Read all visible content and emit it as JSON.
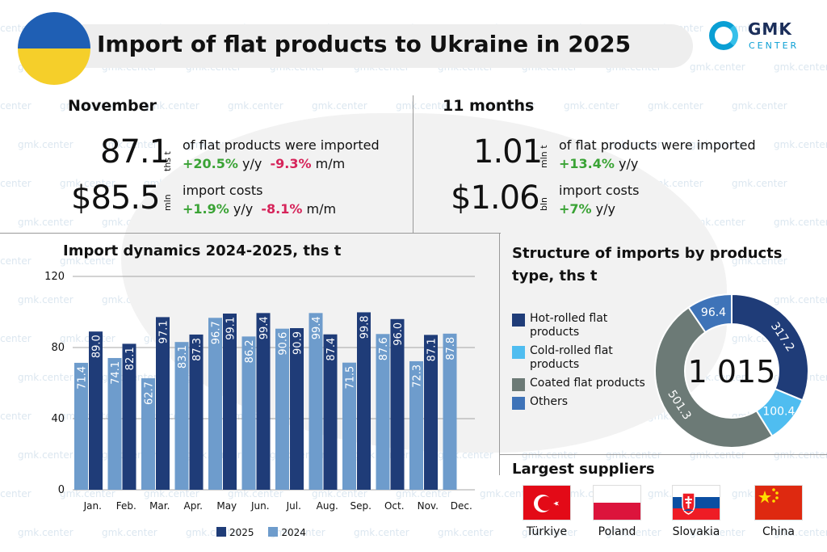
{
  "title": "Import of flat products to Ukraine in 2025",
  "logo": {
    "name": "GMK",
    "sub": "CENTER"
  },
  "watermark": "gmk.center",
  "colors": {
    "series_2025": "#1f3c78",
    "series_2024": "#6e9ccc",
    "positive": "#3aa335",
    "negative": "#d6245a"
  },
  "november": {
    "label": "November",
    "volume": "87.1",
    "volume_unit": "ths t",
    "volume_desc": "of flat products were imported",
    "volume_yy": "+20.5%",
    "volume_yy_suffix": "y/y",
    "volume_mm": "-9.3%",
    "volume_mm_suffix": "m/m",
    "cost": "$85.5",
    "cost_unit": "mln",
    "cost_desc": "import costs",
    "cost_yy": "+1.9%",
    "cost_yy_suffix": "y/y",
    "cost_mm": "-8.1%",
    "cost_mm_suffix": "m/m"
  },
  "eleven_months": {
    "label": "11 months",
    "volume": "1.01",
    "volume_unit": "mln t",
    "volume_desc": "of flat products were imported",
    "volume_yy": "+13.4%",
    "volume_yy_suffix": "y/y",
    "cost": "$1.06",
    "cost_unit": "bln",
    "cost_desc": "import costs",
    "cost_yy": "+7%",
    "cost_yy_suffix": "y/y"
  },
  "dynamics": {
    "title": "Import dynamics 2024-2025, ths t"
  },
  "structure": {
    "title_line1": "Structure of imports by products",
    "title_line2": "type, ths t"
  },
  "suppliers": {
    "title": "Largest suppliers",
    "items": [
      {
        "name": "Türkiye"
      },
      {
        "name": "Poland"
      },
      {
        "name": "Slovakia"
      },
      {
        "name": "China"
      }
    ]
  },
  "chart_data": [
    {
      "type": "bar",
      "categories": [
        "Jan.",
        "Feb.",
        "Mar.",
        "Apr.",
        "May",
        "Jun.",
        "Jul.",
        "Aug.",
        "Sep.",
        "Oct.",
        "Nov.",
        "Dec."
      ],
      "series": [
        {
          "name": "2024",
          "color": "#6e9ccc",
          "values": [
            71.4,
            74.1,
            62.7,
            83.1,
            96.7,
            86.2,
            90.6,
            99.4,
            71.5,
            87.6,
            72.3,
            87.8
          ]
        },
        {
          "name": "2025",
          "color": "#1f3c78",
          "values": [
            89.0,
            82.1,
            97.1,
            87.3,
            99.1,
            99.4,
            90.9,
            87.4,
            99.8,
            96.0,
            87.1,
            null
          ]
        }
      ],
      "yticks": [
        0,
        40,
        80,
        120
      ],
      "ylim": [
        0,
        120
      ],
      "grid": true,
      "legend": "bottom"
    },
    {
      "type": "pie",
      "center_label": "1 015",
      "slices": [
        {
          "label": "Hot-rolled flat products",
          "value": 317.2,
          "color": "#1f3c78"
        },
        {
          "label": "Cold-rolled flat products",
          "value": 100.4,
          "color": "#4fbdf0"
        },
        {
          "label": "Coated flat products",
          "value": 501.3,
          "color": "#6c7a76"
        },
        {
          "label": "Others",
          "value": 96.4,
          "color": "#3e73b8"
        }
      ]
    }
  ]
}
